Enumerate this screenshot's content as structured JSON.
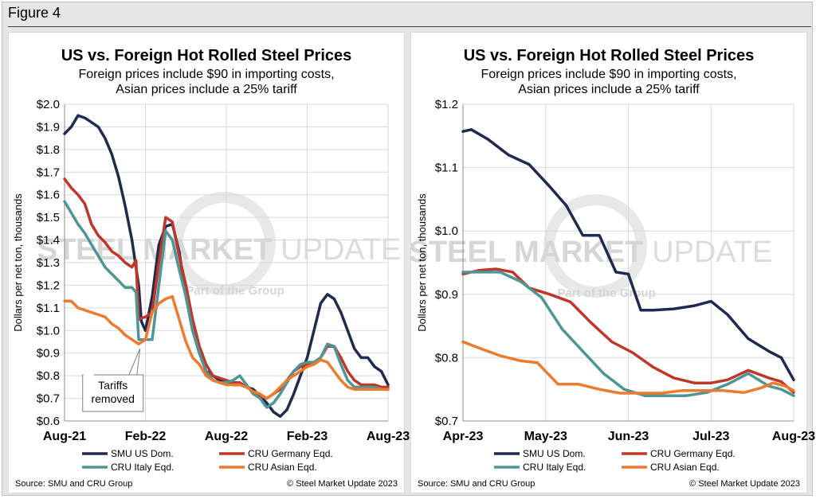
{
  "figure_label": "Figure 4",
  "watermark": {
    "brand": "STEEL",
    "brand2": "MARKET",
    "brand3": "UPDATE",
    "part_of": "Part of the",
    "group": "Group"
  },
  "colors": {
    "smu": "#1f2a4f",
    "germany": "#c0372a",
    "italy": "#4e9595",
    "asian": "#ec7b30",
    "grid": "#d9d9d9"
  },
  "chart_data": [
    {
      "type": "line",
      "title": "US vs. Foreign Hot Rolled Steel Prices",
      "subtitle": [
        "Foreign prices include $90 in importing costs,",
        "Asian prices include a 25% tariff"
      ],
      "ylabel": "Dollars per net ton, thousands",
      "xlabel": "",
      "ylim": [
        0.6,
        2.0
      ],
      "yticks": [
        0.6,
        0.7,
        0.8,
        0.9,
        1.0,
        1.1,
        1.2,
        1.3,
        1.4,
        1.5,
        1.6,
        1.7,
        1.8,
        1.9,
        2.0
      ],
      "ytick_labels": [
        "$0.6",
        "$0.7",
        "$0.8",
        "$0.9",
        "$1.0",
        "$1.1",
        "$1.2",
        "$1.3",
        "$1.4",
        "$1.5",
        "$1.6",
        "$1.7",
        "$1.8",
        "$1.9",
        "$2.0"
      ],
      "xlim": [
        0,
        24
      ],
      "xticks": [
        0,
        6,
        12,
        18,
        24
      ],
      "xtick_labels": [
        "Aug-21",
        "Feb-22",
        "Aug-22",
        "Feb-23",
        "Aug-23"
      ],
      "grid": true,
      "legend_position": "bottom",
      "series": [
        {
          "name": "SMU US Dom.",
          "color": "#1f2a4f",
          "x": [
            0,
            0.5,
            1,
            1.5,
            2,
            2.5,
            3,
            3.5,
            4,
            4.5,
            5,
            5.5,
            5.7,
            6,
            6.5,
            7,
            7.5,
            8,
            8.5,
            9,
            9.5,
            10,
            10.5,
            11,
            11.5,
            12,
            12.5,
            13,
            13.5,
            14,
            14.5,
            15,
            15.5,
            16,
            16.5,
            17,
            17.5,
            18,
            18.5,
            19,
            19.5,
            20,
            20.5,
            21,
            21.5,
            22,
            22.5,
            23,
            23.5,
            24
          ],
          "y": [
            1.87,
            1.9,
            1.95,
            1.94,
            1.92,
            1.9,
            1.85,
            1.78,
            1.68,
            1.55,
            1.4,
            1.2,
            1.04,
            1.0,
            1.15,
            1.38,
            1.46,
            1.47,
            1.35,
            1.15,
            1.0,
            0.9,
            0.82,
            0.8,
            0.78,
            0.77,
            0.76,
            0.76,
            0.75,
            0.74,
            0.71,
            0.68,
            0.64,
            0.62,
            0.65,
            0.72,
            0.8,
            0.88,
            1.0,
            1.12,
            1.16,
            1.14,
            1.08,
            1.0,
            0.92,
            0.88,
            0.88,
            0.84,
            0.82,
            0.76
          ]
        },
        {
          "name": "CRU Germany Eqd.",
          "color": "#c0372a",
          "x": [
            0,
            0.5,
            1,
            1.5,
            2,
            2.5,
            3,
            3.5,
            4,
            4.5,
            5,
            5.3,
            5.5,
            6,
            6.5,
            7,
            7.5,
            8,
            8.5,
            9,
            9.5,
            10,
            10.5,
            11,
            11.5,
            12,
            12.5,
            13,
            13.5,
            14,
            14.5,
            15,
            15.5,
            16,
            16.5,
            17,
            17.5,
            18,
            18.5,
            19,
            19.5,
            20,
            20.5,
            21,
            21.5,
            22,
            22.5,
            23,
            23.5,
            24
          ],
          "y": [
            1.67,
            1.63,
            1.6,
            1.56,
            1.47,
            1.42,
            1.39,
            1.35,
            1.33,
            1.3,
            1.28,
            1.31,
            1.05,
            1.06,
            1.08,
            1.3,
            1.5,
            1.48,
            1.33,
            1.2,
            1.05,
            0.93,
            0.85,
            0.8,
            0.79,
            0.78,
            0.77,
            0.77,
            0.75,
            0.73,
            0.71,
            0.7,
            0.72,
            0.74,
            0.78,
            0.82,
            0.84,
            0.85,
            0.86,
            0.88,
            0.93,
            0.93,
            0.88,
            0.82,
            0.78,
            0.76,
            0.76,
            0.76,
            0.75,
            0.75
          ]
        },
        {
          "name": "CRU Italy Eqd.",
          "color": "#4e9595",
          "x": [
            0,
            0.5,
            1,
            1.5,
            2,
            2.5,
            3,
            3.5,
            4,
            4.5,
            5,
            5.3,
            5.5,
            6,
            6.5,
            7,
            7.5,
            8,
            8.5,
            9,
            9.5,
            10,
            10.5,
            11,
            11.5,
            12,
            12.5,
            13,
            13.5,
            14,
            14.5,
            15,
            15.5,
            16,
            16.5,
            17,
            17.5,
            18,
            18.5,
            19,
            19.5,
            20,
            20.5,
            21,
            21.5,
            22,
            22.5,
            23,
            23.5,
            24
          ],
          "y": [
            1.57,
            1.52,
            1.47,
            1.43,
            1.38,
            1.33,
            1.28,
            1.25,
            1.22,
            1.19,
            1.19,
            1.17,
            0.96,
            0.96,
            0.96,
            1.2,
            1.44,
            1.4,
            1.27,
            1.15,
            1.0,
            0.9,
            0.82,
            0.78,
            0.77,
            0.77,
            0.78,
            0.8,
            0.76,
            0.72,
            0.7,
            0.66,
            0.68,
            0.72,
            0.77,
            0.82,
            0.85,
            0.86,
            0.86,
            0.88,
            0.94,
            0.93,
            0.85,
            0.78,
            0.75,
            0.75,
            0.75,
            0.75,
            0.74,
            0.74
          ]
        },
        {
          "name": "CRU Asian Eqd.",
          "color": "#ec7b30",
          "x": [
            0,
            0.5,
            1,
            1.5,
            2,
            2.5,
            3,
            3.5,
            4,
            4.5,
            5,
            5.5,
            6,
            6.5,
            7,
            7.5,
            8,
            8.5,
            9,
            9.5,
            10,
            10.5,
            11,
            11.5,
            12,
            12.5,
            13,
            13.5,
            14,
            14.5,
            15,
            15.5,
            16,
            16.5,
            17,
            17.5,
            18,
            18.5,
            19,
            19.5,
            20,
            20.5,
            21,
            21.5,
            22,
            22.5,
            23,
            23.5,
            24
          ],
          "y": [
            1.13,
            1.13,
            1.1,
            1.09,
            1.08,
            1.07,
            1.06,
            1.03,
            1.01,
            0.98,
            0.96,
            0.94,
            0.96,
            1.08,
            1.12,
            1.14,
            1.15,
            1.05,
            0.95,
            0.88,
            0.85,
            0.8,
            0.78,
            0.77,
            0.76,
            0.76,
            0.76,
            0.75,
            0.73,
            0.72,
            0.7,
            0.72,
            0.75,
            0.78,
            0.8,
            0.82,
            0.84,
            0.85,
            0.87,
            0.86,
            0.82,
            0.78,
            0.75,
            0.74,
            0.74,
            0.74,
            0.74,
            0.74,
            0.74
          ]
        }
      ],
      "annotation": {
        "text": [
          "Tariffs",
          "removed"
        ],
        "x": 5.6,
        "y": 0.92
      },
      "legend": [
        "SMU US Dom.",
        "CRU Germany Eqd.",
        "CRU Italy Eqd.",
        "CRU Asian Eqd."
      ],
      "source": "Source: SMU and CRU Group",
      "copyright": "© Steel Market Update 2023"
    },
    {
      "type": "line",
      "title": "US vs. Foreign Hot Rolled Steel Prices",
      "subtitle": [
        "Foreign prices include $90 in importing costs,",
        "Asian prices include a 25% tariff"
      ],
      "ylabel": "Dollars per net ton, thousands",
      "xlabel": "",
      "ylim": [
        0.7,
        1.2
      ],
      "yticks": [
        0.7,
        0.8,
        0.9,
        1.0,
        1.1,
        1.2
      ],
      "ytick_labels": [
        "$0.7",
        "$0.8",
        "$0.9",
        "$1.0",
        "$1.1",
        "$1.2"
      ],
      "xlim": [
        0,
        4
      ],
      "xticks": [
        0,
        1,
        2,
        3,
        4
      ],
      "xtick_labels": [
        "Apr-23",
        "May-23",
        "Jun-23",
        "Jul-23",
        "Aug-23"
      ],
      "grid": true,
      "legend_position": "bottom",
      "series": [
        {
          "name": "SMU US Dom.",
          "color": "#1f2a4f",
          "x": [
            0,
            0.1,
            0.3,
            0.55,
            0.8,
            1.05,
            1.25,
            1.45,
            1.65,
            1.85,
            2.0,
            2.15,
            2.3,
            2.55,
            2.8,
            3.0,
            3.2,
            3.45,
            3.7,
            3.85,
            4.0
          ],
          "y": [
            1.157,
            1.16,
            1.145,
            1.12,
            1.105,
            1.07,
            1.04,
            0.993,
            0.993,
            0.935,
            0.932,
            0.875,
            0.875,
            0.877,
            0.882,
            0.889,
            0.868,
            0.83,
            0.81,
            0.8,
            0.765
          ]
        },
        {
          "name": "CRU Germany Eqd.",
          "color": "#c0372a",
          "x": [
            0,
            0.2,
            0.4,
            0.6,
            0.8,
            1.05,
            1.3,
            1.55,
            1.8,
            2.05,
            2.3,
            2.55,
            2.8,
            3.0,
            3.2,
            3.45,
            3.7,
            3.85,
            4.0
          ],
          "y": [
            0.932,
            0.938,
            0.94,
            0.935,
            0.91,
            0.9,
            0.888,
            0.855,
            0.825,
            0.808,
            0.785,
            0.768,
            0.76,
            0.76,
            0.765,
            0.78,
            0.768,
            0.762,
            0.745
          ]
        },
        {
          "name": "CRU Italy Eqd.",
          "color": "#4e9595",
          "x": [
            0,
            0.2,
            0.45,
            0.7,
            0.95,
            1.2,
            1.45,
            1.7,
            1.95,
            2.2,
            2.45,
            2.7,
            2.95,
            3.2,
            3.45,
            3.7,
            3.85,
            4.0
          ],
          "y": [
            0.935,
            0.935,
            0.935,
            0.92,
            0.895,
            0.845,
            0.81,
            0.775,
            0.75,
            0.74,
            0.74,
            0.74,
            0.745,
            0.758,
            0.775,
            0.755,
            0.75,
            0.74
          ]
        },
        {
          "name": "CRU Asian Eqd.",
          "color": "#ec7b30",
          "x": [
            0,
            0.2,
            0.45,
            0.7,
            0.9,
            1.15,
            1.4,
            1.65,
            1.9,
            2.15,
            2.4,
            2.65,
            2.9,
            3.15,
            3.4,
            3.6,
            3.75,
            3.9,
            4.0
          ],
          "y": [
            0.825,
            0.815,
            0.803,
            0.795,
            0.792,
            0.758,
            0.758,
            0.75,
            0.744,
            0.744,
            0.744,
            0.748,
            0.748,
            0.748,
            0.745,
            0.752,
            0.76,
            0.755,
            0.748
          ]
        }
      ],
      "legend": [
        "SMU US Dom.",
        "CRU Germany Eqd.",
        "CRU Italy Eqd.",
        "CRU Asian Eqd."
      ],
      "source": "Source: SMU and CRU Group",
      "copyright": "© Steel Market Update 2023"
    }
  ]
}
